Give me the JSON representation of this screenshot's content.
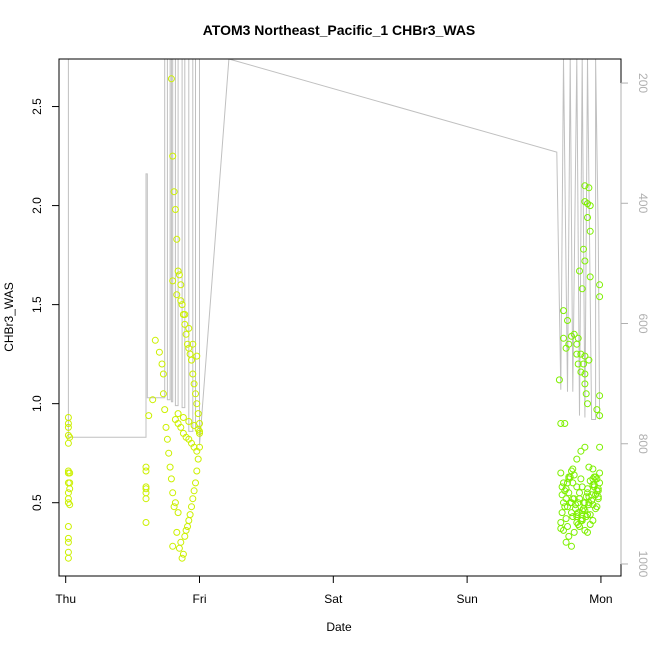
{
  "chart_data": {
    "type": "scatter",
    "title": "ATOM3 Northeast_Pacific_1 CHBr3_WAS",
    "xlabel": "Date",
    "ylabel": "CHBr3_WAS",
    "x_ticks": [
      "Thu",
      "Fri",
      "Sat",
      "Sun",
      "Mon"
    ],
    "xlim": [
      -0.05,
      4.15
    ],
    "ylim": [
      0.13,
      2.74
    ],
    "y_ticks": [
      "0.5",
      "1.0",
      "1.5",
      "2.0",
      "2.5"
    ],
    "y_tick_values": [
      0.5,
      1.0,
      1.5,
      2.0,
      2.5
    ],
    "right_axis": {
      "ticks": [
        "200",
        "400",
        "600",
        "800",
        "1000"
      ],
      "tick_values": [
        200,
        400,
        600,
        800,
        1000
      ],
      "lim": [
        1020,
        160
      ],
      "color": "#b0b0b0"
    },
    "colors": {
      "points_early": "#ccf000",
      "points_late": "#7ef000",
      "line": "#c0c0c0"
    },
    "series": [
      {
        "kind": "points",
        "x": [
          0.02,
          0.02,
          0.02,
          0.02,
          0.02,
          0.02,
          0.02,
          0.02,
          0.02,
          0.02,
          0.02,
          0.02,
          0.02,
          0.02,
          0.02,
          0.02,
          0.03,
          0.03,
          0.03,
          0.03,
          0.03,
          0.6,
          0.6,
          0.6,
          0.6,
          0.6,
          0.6,
          0.6,
          0.62,
          0.65,
          0.67,
          0.7,
          0.72,
          0.73,
          0.73,
          0.74,
          0.75,
          0.76,
          0.77,
          0.78,
          0.79,
          0.8,
          0.8,
          0.81,
          0.82,
          0.83,
          0.84,
          0.85,
          0.86,
          0.87,
          0.88,
          0.89,
          0.9,
          0.91,
          0.92,
          0.93,
          0.94,
          0.95,
          0.96,
          0.97,
          0.98,
          0.99,
          1.0,
          1.0,
          0.79,
          0.8,
          0.81,
          0.82,
          0.83,
          0.84,
          0.85,
          0.86,
          0.87,
          0.88,
          0.89,
          0.9,
          0.91,
          0.92,
          0.93,
          0.94,
          0.95,
          0.96,
          0.97,
          0.98,
          0.99,
          1.0,
          1.0,
          0.8,
          0.83,
          0.86,
          0.89,
          0.92,
          0.95,
          0.98,
          0.82,
          0.84,
          0.86,
          0.88,
          0.9,
          0.92,
          0.94,
          0.96,
          0.98,
          0.84,
          0.88,
          0.92,
          0.96,
          0.99
        ],
        "y": [
          0.22,
          0.25,
          0.3,
          0.32,
          0.38,
          0.5,
          0.52,
          0.55,
          0.6,
          0.65,
          0.66,
          0.8,
          0.84,
          0.88,
          0.9,
          0.93,
          0.57,
          0.49,
          0.6,
          0.65,
          0.83,
          0.4,
          0.52,
          0.55,
          0.57,
          0.58,
          0.66,
          0.68,
          0.94,
          1.02,
          1.32,
          1.26,
          1.2,
          1.15,
          1.05,
          0.97,
          0.88,
          0.82,
          0.75,
          0.68,
          0.62,
          0.55,
          0.28,
          0.48,
          0.5,
          0.35,
          0.45,
          0.27,
          0.3,
          0.22,
          0.24,
          0.33,
          0.36,
          0.38,
          0.41,
          0.44,
          0.48,
          0.52,
          0.56,
          0.6,
          0.66,
          0.72,
          0.78,
          0.86,
          2.64,
          2.25,
          2.07,
          1.98,
          1.83,
          1.67,
          1.65,
          1.6,
          1.5,
          1.45,
          1.4,
          1.35,
          1.3,
          1.28,
          1.25,
          1.22,
          1.15,
          1.1,
          1.05,
          1.0,
          0.95,
          0.9,
          0.85,
          1.62,
          1.55,
          1.52,
          1.45,
          1.38,
          1.3,
          1.24,
          0.92,
          0.9,
          0.88,
          0.85,
          0.83,
          0.82,
          0.8,
          0.78,
          0.76,
          0.95,
          0.93,
          0.91,
          0.89,
          0.87
        ]
      },
      {
        "kind": "points",
        "x": [
          3.7,
          3.71,
          3.72,
          3.73,
          3.74,
          3.75,
          3.76,
          3.77,
          3.78,
          3.79,
          3.8,
          3.81,
          3.82,
          3.83,
          3.84,
          3.85,
          3.86,
          3.87,
          3.88,
          3.89,
          3.9,
          3.91,
          3.92,
          3.93,
          3.94,
          3.95,
          3.96,
          3.97,
          3.98,
          3.99,
          3.7,
          3.72,
          3.74,
          3.76,
          3.78,
          3.8,
          3.82,
          3.84,
          3.86,
          3.88,
          3.9,
          3.92,
          3.94,
          3.96,
          3.98,
          3.71,
          3.73,
          3.75,
          3.77,
          3.79,
          3.81,
          3.83,
          3.85,
          3.87,
          3.89,
          3.91,
          3.93,
          3.95,
          3.97,
          3.7,
          3.72,
          3.74,
          3.76,
          3.78,
          3.8,
          3.82,
          3.84,
          3.86,
          3.88,
          3.9,
          3.92,
          3.94,
          3.96,
          3.98,
          3.71,
          3.75,
          3.79,
          3.83,
          3.87,
          3.91,
          3.95,
          3.99,
          3.7,
          3.73,
          3.76,
          3.79,
          3.82,
          3.85,
          3.88,
          3.91,
          3.94,
          3.97,
          3.74,
          3.78,
          3.82,
          3.86,
          3.9,
          3.94,
          3.98,
          3.69,
          3.72,
          3.75,
          3.8,
          3.82,
          3.85,
          3.87,
          3.88,
          3.88,
          3.89,
          3.9,
          3.99,
          3.99,
          3.72,
          3.74,
          3.76,
          3.78
        ],
        "y": [
          0.4,
          0.45,
          0.5,
          0.48,
          0.42,
          0.38,
          0.55,
          0.5,
          0.45,
          0.6,
          0.52,
          0.47,
          0.43,
          0.5,
          0.55,
          0.62,
          0.58,
          0.5,
          0.46,
          0.53,
          0.57,
          0.49,
          0.44,
          0.51,
          0.59,
          0.63,
          0.54,
          0.48,
          0.56,
          0.6,
          0.37,
          0.36,
          0.3,
          0.33,
          0.28,
          0.35,
          0.4,
          0.38,
          0.42,
          0.36,
          0.44,
          0.39,
          0.41,
          0.47,
          0.52,
          0.58,
          0.56,
          0.6,
          0.63,
          0.52,
          0.49,
          0.45,
          0.41,
          0.47,
          0.43,
          0.5,
          0.54,
          0.58,
          0.62,
          0.65,
          0.6,
          0.57,
          0.62,
          0.66,
          0.64,
          0.58,
          0.52,
          0.46,
          0.5,
          0.55,
          0.61,
          0.67,
          0.63,
          0.57,
          0.54,
          0.48,
          0.43,
          0.39,
          0.47,
          0.53,
          0.59,
          0.65,
          0.9,
          0.9,
          0.63,
          0.67,
          0.72,
          0.76,
          0.78,
          0.68,
          0.62,
          0.56,
          0.52,
          0.5,
          0.44,
          0.41,
          0.35,
          0.49,
          0.53,
          1.12,
          1.47,
          1.42,
          1.35,
          1.3,
          1.25,
          1.2,
          1.15,
          1.1,
          1.05,
          1.0,
          0.94,
          0.78,
          1.33,
          1.28,
          1.3,
          1.34
        ]
      },
      {
        "kind": "points",
        "x": [
          3.88,
          3.88,
          3.9,
          3.91,
          3.92,
          3.9,
          3.92,
          3.87,
          3.88,
          3.92,
          3.84,
          3.86,
          3.99,
          3.99,
          3.99,
          3.88,
          3.91,
          3.82,
          3.83,
          3.85,
          3.83,
          3.97
        ],
        "y": [
          2.1,
          2.02,
          2.01,
          2.09,
          2.0,
          1.94,
          1.87,
          1.78,
          1.72,
          1.64,
          1.67,
          1.58,
          1.6,
          1.54,
          1.04,
          1.24,
          1.22,
          1.25,
          1.2,
          1.16,
          1.33,
          0.97
        ]
      },
      {
        "kind": "line",
        "x": [
          0.0,
          0.02,
          0.02,
          0.04,
          0.04,
          0.6,
          0.6,
          0.61,
          0.61,
          0.74,
          0.74,
          0.76,
          0.76,
          0.78,
          0.78,
          0.79,
          0.79,
          0.8,
          0.8,
          0.82,
          0.82,
          0.84,
          0.84,
          0.87,
          0.87,
          0.89,
          0.89,
          0.92,
          0.92,
          0.95,
          0.95,
          0.97,
          0.97,
          1.0,
          1.0,
          1.0,
          1.22,
          3.67,
          3.67,
          3.7,
          3.7,
          3.72,
          3.72,
          3.75,
          3.75,
          3.77,
          3.77,
          3.79,
          3.79,
          3.82,
          3.82,
          3.84,
          3.84,
          3.86,
          3.86,
          3.88,
          3.88,
          3.9,
          3.9,
          3.93,
          3.93,
          3.96,
          3.96,
          3.98,
          3.98,
          3.99
        ],
        "y": [
          2.74,
          2.74,
          0.83,
          0.83,
          0.83,
          0.83,
          2.16,
          2.16,
          1.03,
          1.03,
          2.74,
          2.74,
          1.02,
          1.02,
          2.74,
          2.74,
          1.01,
          1.01,
          2.74,
          2.74,
          0.99,
          0.99,
          2.74,
          2.74,
          0.98,
          0.98,
          2.74,
          2.74,
          0.86,
          0.86,
          2.74,
          2.74,
          0.88,
          0.88,
          2.74,
          0.79,
          2.74,
          2.27,
          2.27,
          1.07,
          1.07,
          2.74,
          2.74,
          1.06,
          1.06,
          2.74,
          2.74,
          1.06,
          1.06,
          2.74,
          2.74,
          0.94,
          0.94,
          2.74,
          2.74,
          0.93,
          0.93,
          2.74,
          2.74,
          0.92,
          0.92,
          0.92,
          2.74,
          1.83,
          1.83,
          0.92
        ]
      }
    ]
  }
}
